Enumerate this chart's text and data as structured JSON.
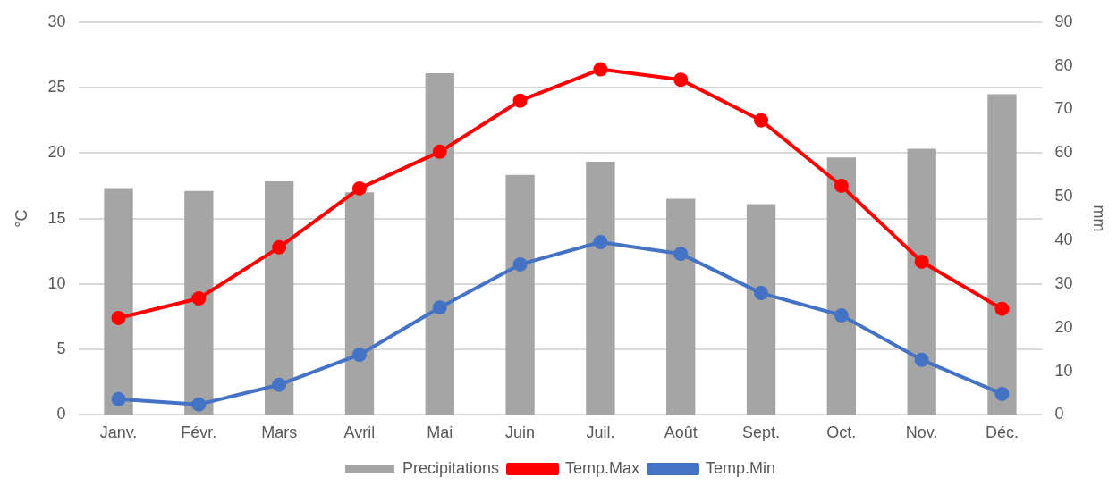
{
  "chart_data": {
    "type": "bar",
    "ylabel": "°C",
    "y2label": "mm",
    "categories": [
      "Janv.",
      "Févr.",
      "Mars",
      "Avril",
      "Mai",
      "Juin",
      "Juil.",
      "Août",
      "Sept.",
      "Oct.",
      "Nov.",
      "Déc."
    ],
    "series": [
      {
        "name": "Precipitations",
        "type": "bar",
        "axis": "y2",
        "color": "#a5a5a5",
        "values": [
          52,
          51.3,
          53.5,
          51,
          78.3,
          55,
          58,
          49.5,
          48.3,
          59,
          61,
          73.5
        ]
      },
      {
        "name": "Temp.Max",
        "type": "line",
        "color": "#ff0000",
        "values": [
          7.4,
          8.9,
          12.8,
          17.3,
          20.1,
          24,
          26.4,
          25.6,
          22.5,
          17.5,
          11.7,
          8.1
        ]
      },
      {
        "name": "Temp.Min",
        "type": "line",
        "color": "#4472c4",
        "values": [
          1.2,
          0.8,
          2.3,
          4.6,
          8.2,
          11.5,
          13.2,
          12.3,
          9.3,
          7.6,
          4.2,
          1.6
        ]
      }
    ],
    "ylim": [
      0,
      30
    ],
    "yticks": [
      0,
      5,
      10,
      15,
      20,
      25,
      30
    ],
    "y2lim": [
      0,
      90
    ],
    "y2ticks": [
      0,
      10,
      20,
      30,
      40,
      50,
      60,
      70,
      80,
      90
    ],
    "grid": "y",
    "legend": "bottom",
    "marker": "circle",
    "line_style": "solid"
  }
}
